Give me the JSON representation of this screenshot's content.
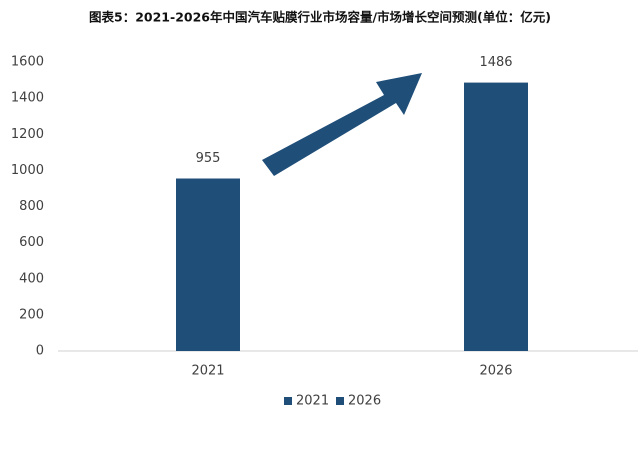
{
  "chart_data": {
    "type": "bar",
    "title": "图表5：2021-2026年中国汽车贴膜行业市场容量/市场增长空间预测(单位：亿元)",
    "categories": [
      "2021",
      "2026"
    ],
    "series": [
      {
        "name": "2021",
        "color": "#1f4e79",
        "values": [
          955,
          null
        ]
      },
      {
        "name": "2026",
        "color": "#1f4e79",
        "values": [
          null,
          1486
        ]
      }
    ],
    "ylim": [
      0,
      1600
    ],
    "yticks": [
      0,
      200,
      400,
      600,
      800,
      1000,
      1200,
      1400,
      1600
    ],
    "grid": false,
    "legend": "bottom"
  }
}
